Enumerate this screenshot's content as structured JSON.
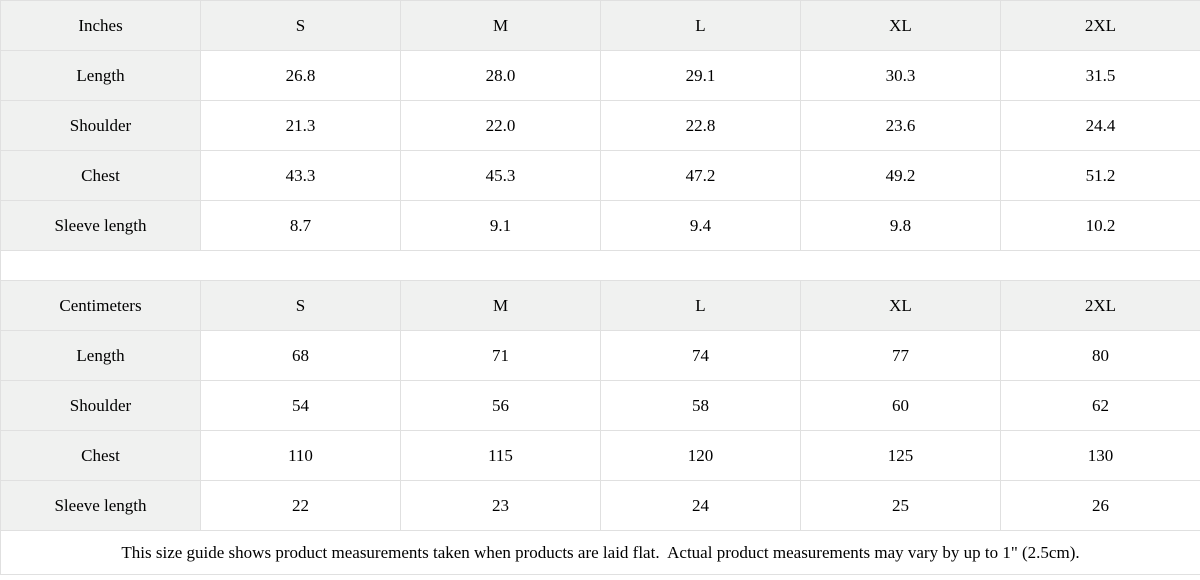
{
  "colors": {
    "header_cell_bg": "#f0f1f0",
    "grid_border": "#e0e0e0",
    "text": "#000000",
    "data_cell_bg": "#ffffff"
  },
  "chart_data": [
    {
      "type": "table",
      "unit_label": "Inches",
      "columns": [
        "S",
        "M",
        "L",
        "XL",
        "2XL"
      ],
      "rows": [
        {
          "label": "Length",
          "values": [
            "26.8",
            "28.0",
            "29.1",
            "30.3",
            "31.5"
          ]
        },
        {
          "label": "Shoulder",
          "values": [
            "21.3",
            "22.0",
            "22.8",
            "23.6",
            "24.4"
          ]
        },
        {
          "label": "Chest",
          "values": [
            "43.3",
            "45.3",
            "47.2",
            "49.2",
            "51.2"
          ]
        },
        {
          "label": "Sleeve length",
          "values": [
            "8.7",
            "9.1",
            "9.4",
            "9.8",
            "10.2"
          ]
        }
      ]
    },
    {
      "type": "table",
      "unit_label": "Centimeters",
      "columns": [
        "S",
        "M",
        "L",
        "XL",
        "2XL"
      ],
      "rows": [
        {
          "label": "Length",
          "values": [
            "68",
            "71",
            "74",
            "77",
            "80"
          ]
        },
        {
          "label": "Shoulder",
          "values": [
            "54",
            "56",
            "58",
            "60",
            "62"
          ]
        },
        {
          "label": "Chest",
          "values": [
            "110",
            "115",
            "120",
            "125",
            "130"
          ]
        },
        {
          "label": "Sleeve length",
          "values": [
            "22",
            "23",
            "24",
            "25",
            "26"
          ]
        }
      ]
    }
  ],
  "footer": {
    "note": "This size guide shows product measurements taken when products are laid flat.  Actual product measurements may vary by up to 1\" (2.5cm)."
  }
}
